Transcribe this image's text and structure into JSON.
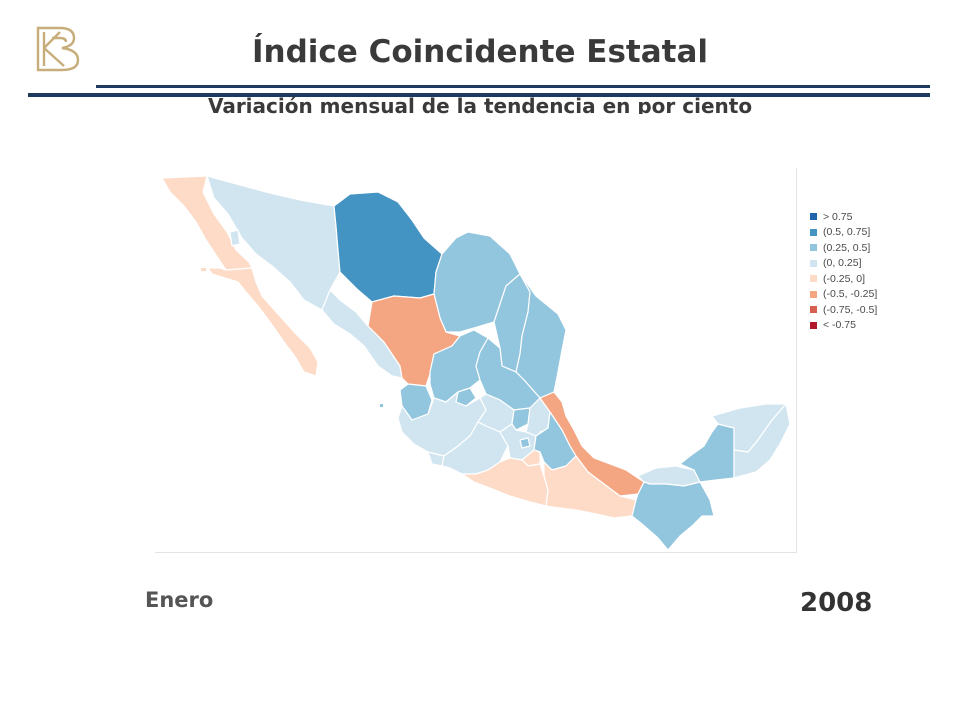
{
  "header": {
    "title": "Índice Coincidente Estatal",
    "subtitle": "Variación mensual de la tendencia en por ciento"
  },
  "colors": {
    "rule": "#1f3a5f",
    "logo": "#c7ad7a",
    "text": "#3a3a3a"
  },
  "legend": [
    {
      "label": "> 0.75",
      "color": "#2166ac"
    },
    {
      "label": "(0.5, 0.75]",
      "color": "#4393c3"
    },
    {
      "label": "(0.25, 0.5]",
      "color": "#92c5de"
    },
    {
      "label": "(0, 0.25]",
      "color": "#d1e5f0"
    },
    {
      "label": "(-0.25, 0]",
      "color": "#fddbc7"
    },
    {
      "label": "(-0.5, -0.25]",
      "color": "#f4a582"
    },
    {
      "label": "(-0.75, -0.5]",
      "color": "#d6604d"
    },
    {
      "label": "< -0.75",
      "color": "#b2182b"
    }
  ],
  "footer": {
    "month": "Enero",
    "year": "2008"
  }
}
